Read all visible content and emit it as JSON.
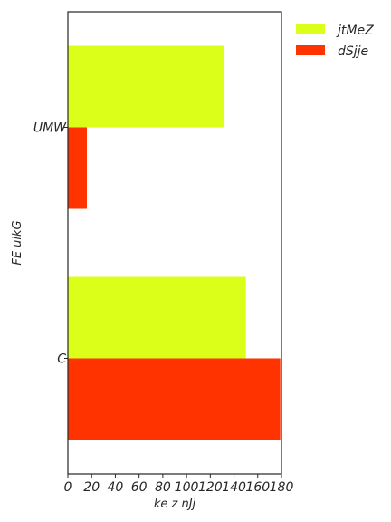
{
  "chart_data": {
    "type": "bar",
    "orientation": "horizontal",
    "categories": [
      "UMW",
      "C"
    ],
    "series": [
      {
        "name": "jtMeZ",
        "values": [
          132,
          150
        ],
        "color": "#dcff19"
      },
      {
        "name": "dSjje",
        "values": [
          16,
          179
        ],
        "color": "#ff3300"
      }
    ],
    "xlabel": "ke z nJj",
    "ylabel": "FE uikG",
    "xlim": [
      0,
      180
    ],
    "xticks": [
      0,
      20,
      40,
      60,
      80,
      100,
      120,
      140,
      160,
      180
    ],
    "grid": false,
    "legend_position": "top-right"
  }
}
